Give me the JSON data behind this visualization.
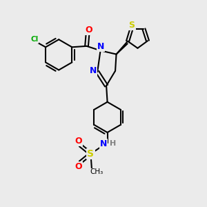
{
  "bg_color": "#ebebeb",
  "atom_colors": {
    "C": "#000000",
    "N": "#0000ff",
    "O": "#ff0000",
    "S": "#cccc00",
    "Cl": "#00aa00",
    "H": "#808080"
  },
  "bond_color": "#000000",
  "figsize": [
    3.0,
    3.0
  ],
  "dpi": 100
}
